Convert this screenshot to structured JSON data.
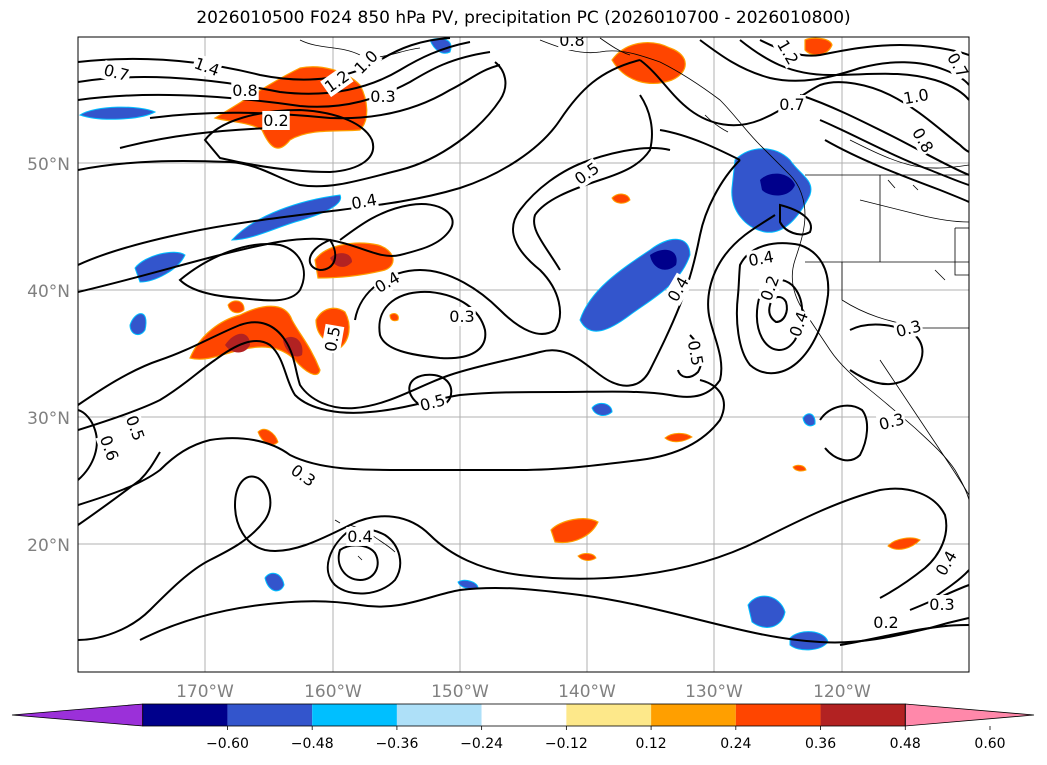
{
  "title": "2026010500 F024 850 hPa PV, precipitation PC (2026010700 - 2026010800)",
  "lat_labels": [
    "50°N",
    "40°N",
    "30°N",
    "20°N"
  ],
  "lon_labels": [
    "170°W",
    "160°W",
    "150°W",
    "140°W",
    "130°W",
    "120°W"
  ],
  "colorbar": {
    "ticks": [
      "−0.60",
      "−0.48",
      "−0.36",
      "−0.24",
      "−0.12",
      "0.12",
      "0.24",
      "0.36",
      "0.48",
      "0.60"
    ],
    "colors": [
      "#9b30d9",
      "#00008b",
      "#3355cc",
      "#00bfff",
      "#aee0f8",
      "#ffffff",
      "#fde88a",
      "#ff9f00",
      "#ff4500",
      "#b22222",
      "#ff88aa"
    ]
  },
  "contour_labels": [
    "0.7",
    "1.4",
    "0.8",
    "1.2",
    "1.0",
    "0.3",
    "0.2",
    "0.8",
    "0.7",
    "1.2",
    "1.0",
    "0.7",
    "0.8",
    "0.5",
    "0.4",
    "0.4",
    "0.4",
    "0.5",
    "0.3",
    "0.4",
    "0.4",
    "0.5",
    "0.5",
    "0.3",
    "0.5",
    "0.6",
    "0.3",
    "0.4",
    "0.2",
    "0.3",
    "0.4",
    "0.3",
    "0.2"
  ]
}
